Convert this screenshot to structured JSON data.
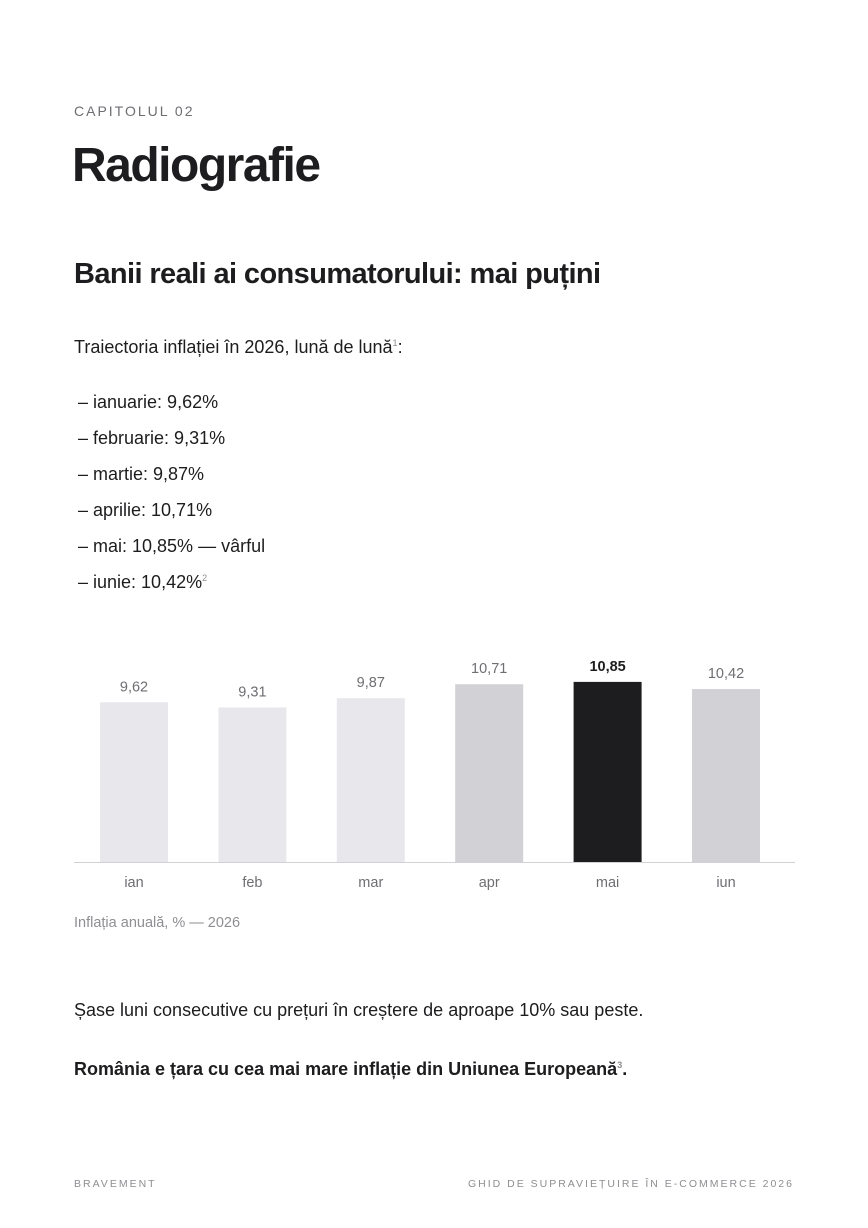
{
  "header": {
    "eyebrow": "CAPITOLUL 02",
    "title": "Radiografie"
  },
  "section": {
    "subtitle": "Banii reali ai consumatorului: mai puțini",
    "intro": "Traiectoria inflației în 2026, lună de lună",
    "intro_note": "1",
    "intro_suffix": ":",
    "list": [
      {
        "text": "– ianuarie: 9,62%",
        "note": ""
      },
      {
        "text": "– februarie: 9,31%",
        "note": ""
      },
      {
        "text": "– martie: 9,87%",
        "note": ""
      },
      {
        "text": "– aprilie: 10,71%",
        "note": ""
      },
      {
        "text": "– mai: 10,85% — vârful",
        "note": ""
      },
      {
        "text": "– iunie: 10,42%",
        "note": "2"
      }
    ]
  },
  "chart_data": {
    "type": "bar",
    "categories": [
      "ian",
      "feb",
      "mar",
      "apr",
      "mai",
      "iun"
    ],
    "values": [
      9.62,
      9.31,
      9.87,
      10.71,
      10.85,
      10.42
    ],
    "value_labels": [
      "9,62",
      "9,31",
      "9,87",
      "10,71",
      "10,85",
      "10,42"
    ],
    "highlight_index": 4,
    "bar_colors": [
      "#e8e8ec",
      "#e8e8ec",
      "#e8e8ec",
      "#d1d1d6",
      "#1d1d1f",
      "#d1d1d6"
    ],
    "caption": "Inflația anuală, % — 2026",
    "grid": false,
    "legend": "none"
  },
  "body": {
    "paragraph": "Șase luni consecutive cu prețuri în creștere de aproape 10% sau peste.",
    "emphasis": "România e țara cu cea mai mare inflație din Uniunea Europeană",
    "emphasis_note": "3",
    "emphasis_suffix": "."
  },
  "footer": {
    "left": "BRAVEMENT",
    "right": "GHID DE SUPRAVIEȚUIRE ÎN E-COMMERCE 2026"
  }
}
